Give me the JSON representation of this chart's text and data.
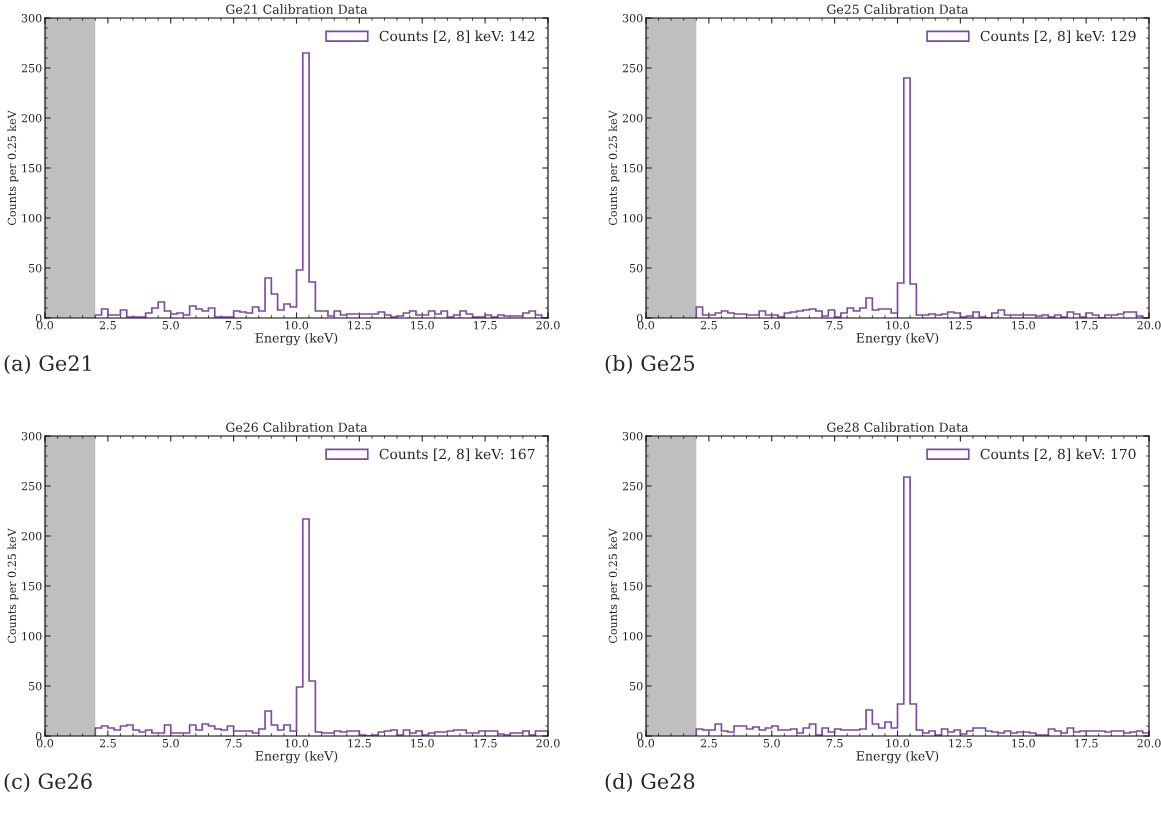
{
  "chart_data": [
    {
      "type": "histogram",
      "title": "Ge21 Calibration Data",
      "xlabel": "Energy (keV)",
      "ylabel": "Counts per 0.25 keV",
      "annotations": [
        "(a) Ge21"
      ],
      "bins": [
        2.0,
        2.25,
        2.5,
        2.75,
        3.0,
        3.25,
        3.5,
        3.75,
        4.0,
        4.25,
        4.5,
        4.75,
        5.0,
        5.25,
        5.5,
        5.75,
        6.0,
        6.25,
        6.5,
        6.75,
        7.0,
        7.25,
        7.5,
        7.75,
        8.0,
        8.25,
        8.5,
        8.75,
        9.0,
        9.25,
        9.5,
        9.75,
        10.0,
        10.25,
        10.5,
        10.75,
        11.0,
        11.25,
        11.5,
        11.75,
        12.0,
        12.25,
        12.5,
        12.75,
        13.0,
        13.25,
        13.5,
        13.75,
        14.0,
        14.25,
        14.5,
        14.75,
        15.0,
        15.25,
        15.5,
        15.75,
        16.0,
        16.25,
        16.5,
        16.75,
        17.0,
        17.25,
        17.5,
        17.75,
        18.0,
        18.25,
        18.5,
        18.75,
        19.0,
        19.25,
        19.5,
        19.75,
        20.0
      ],
      "series": [
        {
          "name": "Counts [2, 8] keV: 142",
          "color": "#7d4a9e",
          "values": [
            3,
            9,
            3,
            3,
            8,
            1,
            1,
            1,
            5,
            10,
            16,
            7,
            4,
            5,
            3,
            12,
            9,
            7,
            10,
            1,
            1,
            1,
            7,
            6,
            5,
            11,
            7,
            40,
            24,
            8,
            14,
            11,
            48,
            265,
            36,
            7,
            7,
            2,
            7,
            3,
            4,
            4,
            4,
            4,
            4,
            6,
            3,
            1,
            2,
            5,
            7,
            3,
            3,
            7,
            4,
            7,
            1,
            3,
            7,
            4,
            1,
            1,
            3,
            1,
            3,
            2,
            2,
            2,
            5,
            7,
            3,
            0
          ]
        }
      ],
      "bands": [
        {
          "axis": "x",
          "from": 0,
          "to": 2,
          "color": "#bfbfbf"
        }
      ],
      "xlim": [
        0,
        20
      ],
      "ylim": [
        0,
        300
      ],
      "xticks": [
        {
          "value": 0,
          "label": "0.0"
        },
        {
          "value": 2.5,
          "label": "2.5"
        },
        {
          "value": 5,
          "label": "5.0"
        },
        {
          "value": 7.5,
          "label": "7.5"
        },
        {
          "value": 10,
          "label": "10.0"
        },
        {
          "value": 12.5,
          "label": "12.5"
        },
        {
          "value": 15,
          "label": "15.0"
        },
        {
          "value": 17.5,
          "label": "17.5"
        },
        {
          "value": 20,
          "label": "20.0"
        }
      ],
      "yticks": [
        0,
        50,
        100,
        150,
        200,
        250,
        300
      ],
      "legend": "top right",
      "grid": false
    },
    {
      "type": "histogram",
      "title": "Ge25 Calibration Data",
      "xlabel": "Energy (keV)",
      "ylabel": "Counts per 0.25 keV",
      "annotations": [
        "(b) Ge25"
      ],
      "bins": [
        2.0,
        2.25,
        2.5,
        2.75,
        3.0,
        3.25,
        3.5,
        3.75,
        4.0,
        4.25,
        4.5,
        4.75,
        5.0,
        5.25,
        5.5,
        5.75,
        6.0,
        6.25,
        6.5,
        6.75,
        7.0,
        7.25,
        7.5,
        7.75,
        8.0,
        8.25,
        8.5,
        8.75,
        9.0,
        9.25,
        9.5,
        9.75,
        10.0,
        10.25,
        10.5,
        10.75,
        11.0,
        11.25,
        11.5,
        11.75,
        12.0,
        12.25,
        12.5,
        12.75,
        13.0,
        13.25,
        13.5,
        13.75,
        14.0,
        14.25,
        14.5,
        14.75,
        15.0,
        15.25,
        15.5,
        15.75,
        16.0,
        16.25,
        16.5,
        16.75,
        17.0,
        17.25,
        17.5,
        17.75,
        18.0,
        18.25,
        18.5,
        18.75,
        19.0,
        19.25,
        19.5,
        19.75,
        20.0
      ],
      "series": [
        {
          "name": "Counts [2, 8] keV: 129",
          "color": "#7d4a9e",
          "values": [
            11,
            3,
            3,
            5,
            7,
            5,
            4,
            4,
            3,
            3,
            7,
            3,
            3,
            1,
            5,
            6,
            7,
            8,
            9,
            7,
            2,
            8,
            1,
            5,
            10,
            7,
            10,
            20,
            8,
            9,
            9,
            5,
            35,
            240,
            34,
            3,
            3,
            4,
            3,
            4,
            6,
            5,
            1,
            2,
            6,
            1,
            0,
            5,
            8,
            3,
            3,
            3,
            3,
            3,
            2,
            3,
            1,
            3,
            1,
            6,
            4,
            1,
            5,
            3,
            0,
            3,
            3,
            4,
            6,
            6,
            2,
            0
          ]
        }
      ],
      "bands": [
        {
          "axis": "x",
          "from": 0,
          "to": 2,
          "color": "#bfbfbf"
        }
      ],
      "xlim": [
        0,
        20
      ],
      "ylim": [
        0,
        300
      ],
      "xticks": [
        {
          "value": 0,
          "label": "0.0"
        },
        {
          "value": 2.5,
          "label": "2.5"
        },
        {
          "value": 5,
          "label": "5.0"
        },
        {
          "value": 7.5,
          "label": "7.5"
        },
        {
          "value": 10,
          "label": "10.0"
        },
        {
          "value": 12.5,
          "label": "12.5"
        },
        {
          "value": 15,
          "label": "15.0"
        },
        {
          "value": 17.5,
          "label": "17.5"
        },
        {
          "value": 20,
          "label": "20.0"
        }
      ],
      "yticks": [
        0,
        50,
        100,
        150,
        200,
        250,
        300
      ],
      "legend": "top right",
      "grid": false
    },
    {
      "type": "histogram",
      "title": "Ge26 Calibration Data",
      "xlabel": "Energy (keV)",
      "ylabel": "Counts per 0.25 keV",
      "annotations": [
        "(c) Ge26"
      ],
      "bins": [
        2.0,
        2.25,
        2.5,
        2.75,
        3.0,
        3.25,
        3.5,
        3.75,
        4.0,
        4.25,
        4.5,
        4.75,
        5.0,
        5.25,
        5.5,
        5.75,
        6.0,
        6.25,
        6.5,
        6.75,
        7.0,
        7.25,
        7.5,
        7.75,
        8.0,
        8.25,
        8.5,
        8.75,
        9.0,
        9.25,
        9.5,
        9.75,
        10.0,
        10.25,
        10.5,
        10.75,
        11.0,
        11.25,
        11.5,
        11.75,
        12.0,
        12.25,
        12.5,
        12.75,
        13.0,
        13.25,
        13.5,
        13.75,
        14.0,
        14.25,
        14.5,
        14.75,
        15.0,
        15.25,
        15.5,
        15.75,
        16.0,
        16.25,
        16.5,
        16.75,
        17.0,
        17.25,
        17.5,
        17.75,
        18.0,
        18.25,
        18.5,
        18.75,
        19.0,
        19.25,
        19.5,
        19.75,
        20.0
      ],
      "series": [
        {
          "name": "Counts [2, 8] keV: 167",
          "color": "#7d4a9e",
          "values": [
            8,
            10,
            8,
            6,
            10,
            11,
            6,
            4,
            6,
            3,
            3,
            11,
            3,
            3,
            3,
            11,
            6,
            12,
            10,
            7,
            6,
            10,
            5,
            5,
            5,
            3,
            7,
            25,
            11,
            6,
            11,
            5,
            49,
            217,
            55,
            4,
            3,
            3,
            5,
            4,
            5,
            5,
            1,
            0,
            1,
            4,
            5,
            6,
            1,
            6,
            3,
            5,
            1,
            3,
            4,
            4,
            5,
            6,
            6,
            3,
            3,
            5,
            5,
            5,
            2,
            1,
            3,
            3,
            5,
            1,
            5,
            5
          ]
        }
      ],
      "bands": [
        {
          "axis": "x",
          "from": 0,
          "to": 2,
          "color": "#bfbfbf"
        }
      ],
      "xlim": [
        0,
        20
      ],
      "ylim": [
        0,
        300
      ],
      "xticks": [
        {
          "value": 0,
          "label": "0.0"
        },
        {
          "value": 2.5,
          "label": "2.5"
        },
        {
          "value": 5,
          "label": "5.0"
        },
        {
          "value": 7.5,
          "label": "7.5"
        },
        {
          "value": 10,
          "label": "10.0"
        },
        {
          "value": 12.5,
          "label": "12.5"
        },
        {
          "value": 15,
          "label": "15.0"
        },
        {
          "value": 17.5,
          "label": "17.5"
        },
        {
          "value": 20,
          "label": "20.0"
        }
      ],
      "yticks": [
        0,
        50,
        100,
        150,
        200,
        250,
        300
      ],
      "legend": "top right",
      "grid": false
    },
    {
      "type": "histogram",
      "title": "Ge28 Calibration Data",
      "xlabel": "Energy (keV)",
      "ylabel": "Counts per 0.25 keV",
      "annotations": [
        "(d) Ge28"
      ],
      "bins": [
        2.0,
        2.25,
        2.5,
        2.75,
        3.0,
        3.25,
        3.5,
        3.75,
        4.0,
        4.25,
        4.5,
        4.75,
        5.0,
        5.25,
        5.5,
        5.75,
        6.0,
        6.25,
        6.5,
        6.75,
        7.0,
        7.25,
        7.5,
        7.75,
        8.0,
        8.25,
        8.5,
        8.75,
        9.0,
        9.25,
        9.5,
        9.75,
        10.0,
        10.25,
        10.5,
        10.75,
        11.0,
        11.25,
        11.5,
        11.75,
        12.0,
        12.25,
        12.5,
        12.75,
        13.0,
        13.25,
        13.5,
        13.75,
        14.0,
        14.25,
        14.5,
        14.75,
        15.0,
        15.25,
        15.5,
        15.75,
        16.0,
        16.25,
        16.5,
        16.75,
        17.0,
        17.25,
        17.5,
        17.75,
        18.0,
        18.25,
        18.5,
        18.75,
        19.0,
        19.25,
        19.5,
        19.75,
        20.0
      ],
      "series": [
        {
          "name": "Counts [2, 8] keV: 170",
          "color": "#7d4a9e",
          "values": [
            7,
            6,
            6,
            12,
            5,
            4,
            10,
            10,
            7,
            9,
            6,
            8,
            10,
            6,
            6,
            7,
            3,
            8,
            12,
            1,
            8,
            4,
            7,
            6,
            6,
            6,
            7,
            26,
            12,
            8,
            14,
            8,
            32,
            259,
            32,
            6,
            3,
            5,
            1,
            7,
            4,
            6,
            2,
            5,
            8,
            8,
            5,
            4,
            3,
            5,
            3,
            4,
            4,
            3,
            1,
            1,
            7,
            5,
            3,
            8,
            4,
            5,
            5,
            5,
            5,
            4,
            5,
            5,
            3,
            4,
            5,
            3
          ]
        }
      ],
      "bands": [
        {
          "axis": "x",
          "from": 0,
          "to": 2,
          "color": "#bfbfbf"
        }
      ],
      "xlim": [
        0,
        20
      ],
      "ylim": [
        0,
        300
      ],
      "xticks": [
        {
          "value": 0,
          "label": "0.0"
        },
        {
          "value": 2.5,
          "label": "2.5"
        },
        {
          "value": 5,
          "label": "5.0"
        },
        {
          "value": 7.5,
          "label": "7.5"
        },
        {
          "value": 10,
          "label": "10.0"
        },
        {
          "value": 12.5,
          "label": "12.5"
        },
        {
          "value": 15,
          "label": "15.0"
        },
        {
          "value": 17.5,
          "label": "17.5"
        },
        {
          "value": 20,
          "label": "20.0"
        }
      ],
      "yticks": [
        0,
        50,
        100,
        150,
        200,
        250,
        300
      ],
      "legend": "top right",
      "grid": false
    }
  ]
}
